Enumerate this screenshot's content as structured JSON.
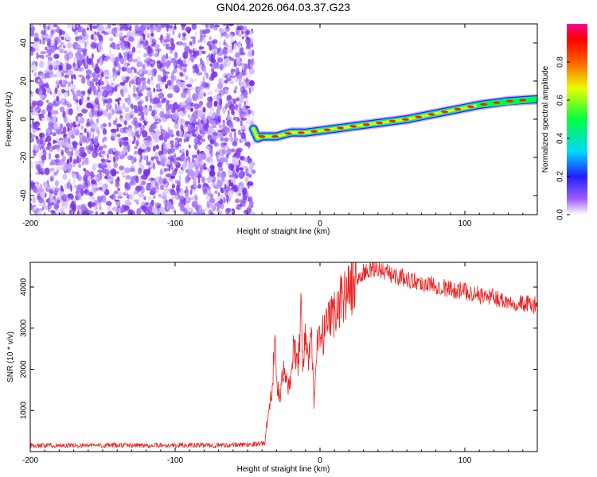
{
  "title": "GN04.2026.064.03.37.G23",
  "chart_data": [
    {
      "type": "heatmap",
      "title": "GN04.2026.064.03.37.G23",
      "xlabel": "Height of straight line (km)",
      "ylabel": "Frequency (Hz)",
      "xlim": [
        -200,
        150
      ],
      "ylim": [
        -50,
        50
      ],
      "xticks": [
        -200,
        -100,
        0,
        100
      ],
      "yticks": [
        -40,
        -20,
        0,
        20,
        40
      ],
      "noise_region_x": [
        -200,
        -46
      ],
      "signal_track": {
        "x": [
          -46,
          -43,
          -40,
          -30,
          -20,
          -10,
          0,
          10,
          20,
          30,
          40,
          50,
          60,
          70,
          80,
          90,
          100,
          110,
          120,
          130,
          140,
          150
        ],
        "frequency": [
          -5,
          -10,
          -9,
          -9,
          -7,
          -7,
          -6,
          -5,
          -4,
          -3,
          -2,
          -1,
          0,
          1.5,
          3,
          4.5,
          6,
          7.5,
          8.5,
          9.5,
          10,
          10.5
        ]
      },
      "colorbar": {
        "label": "Normalized spectral amplitude",
        "range": [
          0,
          1
        ],
        "ticks": [
          "0.0",
          "0.2",
          "0.4",
          "0.6",
          "0.8"
        ]
      }
    },
    {
      "type": "line",
      "xlabel": "Height of straight line (km)",
      "ylabel": "SNR (10 * v/v)",
      "xlim": [
        -200,
        150
      ],
      "ylim": [
        0,
        4600
      ],
      "xticks": [
        -200,
        -100,
        0,
        100
      ],
      "yticks": [
        1000,
        2000,
        3000,
        4000
      ],
      "series": [
        {
          "name": "SNR",
          "color": "#ee2222",
          "x": [
            -200,
            -150,
            -100,
            -60,
            -38,
            -37,
            -33,
            -31,
            -30,
            -28,
            -25,
            -22,
            -20,
            -18,
            -15,
            -13,
            -12,
            -10,
            -8,
            -6,
            -4,
            -2,
            0,
            5,
            10,
            15,
            20,
            25,
            30,
            40,
            50,
            60,
            70,
            80,
            90,
            100,
            110,
            120,
            130,
            140,
            150
          ],
          "values": [
            150,
            150,
            150,
            155,
            200,
            600,
            1500,
            3050,
            1600,
            1350,
            1900,
            1650,
            1700,
            2600,
            2200,
            3700,
            2000,
            2900,
            2200,
            2800,
            1100,
            2600,
            2700,
            3000,
            3400,
            3750,
            3950,
            4150,
            4350,
            4450,
            4300,
            4200,
            4100,
            4050,
            3950,
            3900,
            3800,
            3750,
            3650,
            3600,
            3550
          ]
        }
      ]
    }
  ]
}
